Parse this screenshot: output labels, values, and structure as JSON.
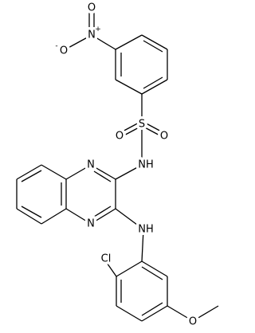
{
  "atoms": [
    {
      "label": "O",
      "charge": "-"
    },
    {
      "label": "N",
      "charge": "+"
    },
    {
      "label": "O"
    },
    {
      "label": "S"
    },
    {
      "label": "O"
    },
    {
      "label": "O"
    },
    {
      "label": "NH"
    },
    {
      "label": "N"
    },
    {
      "label": "N"
    },
    {
      "label": "NH"
    },
    {
      "label": "Cl"
    },
    {
      "label": "O"
    }
  ]
}
